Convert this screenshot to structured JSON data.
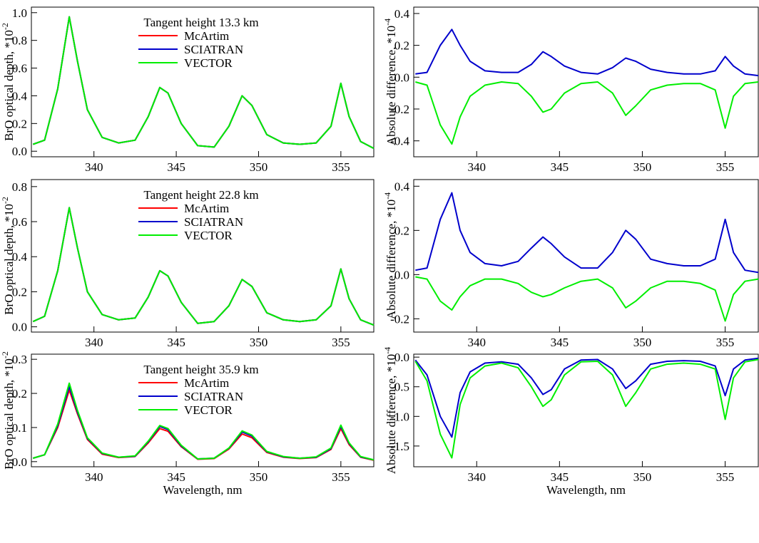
{
  "chart_data": [
    {
      "type": "line",
      "annotation": "Tangent height 13.3 km",
      "ylabel": "BrO optical depth, *10",
      "ylabel_sup": "-2",
      "x": [
        336.3,
        337,
        337.8,
        338.5,
        339,
        339.6,
        340.5,
        341.5,
        342.5,
        343.3,
        344,
        344.5,
        345.3,
        346.3,
        347.3,
        348.2,
        349,
        349.6,
        350.5,
        351.5,
        352.5,
        353.5,
        354.4,
        355,
        355.5,
        356.2,
        357
      ],
      "xlim": [
        336.2,
        357
      ],
      "xticks": [
        340,
        345,
        350,
        355
      ],
      "ylim": [
        -0.04,
        1.04
      ],
      "yticks": [
        {
          "value": 0,
          "label": "0.0"
        },
        0.2,
        0.4,
        0.6,
        0.8,
        {
          "value": 1,
          "label": "1.0"
        }
      ],
      "series": [
        {
          "name": "McArtim",
          "color": "#ff0000",
          "values": [
            0.05,
            0.08,
            0.45,
            0.97,
            0.65,
            0.3,
            0.1,
            0.06,
            0.08,
            0.25,
            0.46,
            0.42,
            0.2,
            0.04,
            0.03,
            0.18,
            0.4,
            0.33,
            0.12,
            0.06,
            0.05,
            0.06,
            0.18,
            0.49,
            0.25,
            0.07,
            0.02
          ]
        },
        {
          "name": "SCIATRAN",
          "color": "#0000cc",
          "values": [
            0.05,
            0.08,
            0.45,
            0.97,
            0.65,
            0.3,
            0.1,
            0.06,
            0.08,
            0.25,
            0.46,
            0.42,
            0.2,
            0.04,
            0.03,
            0.18,
            0.4,
            0.33,
            0.12,
            0.06,
            0.05,
            0.06,
            0.18,
            0.49,
            0.25,
            0.07,
            0.02
          ]
        },
        {
          "name": "VECTOR",
          "color": "#00ee00",
          "values": [
            0.05,
            0.08,
            0.45,
            0.97,
            0.65,
            0.3,
            0.1,
            0.06,
            0.08,
            0.25,
            0.46,
            0.42,
            0.2,
            0.04,
            0.03,
            0.18,
            0.4,
            0.33,
            0.12,
            0.06,
            0.05,
            0.06,
            0.18,
            0.49,
            0.25,
            0.07,
            0.02
          ]
        }
      ]
    },
    {
      "type": "line",
      "ylabel": "Absolute difference, *10",
      "ylabel_sup": "-4",
      "x": [
        336.3,
        337,
        337.8,
        338.5,
        339,
        339.6,
        340.5,
        341.5,
        342.5,
        343.3,
        344,
        344.5,
        345.3,
        346.3,
        347.3,
        348.2,
        349,
        349.6,
        350.5,
        351.5,
        352.5,
        353.5,
        354.4,
        355,
        355.5,
        356.2,
        357
      ],
      "xlim": [
        336.2,
        357
      ],
      "xticks": [
        340,
        345,
        350,
        355
      ],
      "ylim": [
        -0.5,
        0.44
      ],
      "yticks": [
        -0.4,
        -0.2,
        {
          "value": 0,
          "label": "0.0"
        },
        0.2,
        0.4
      ],
      "series": [
        {
          "color": "#0000cc",
          "values": [
            0.02,
            0.03,
            0.2,
            0.3,
            0.2,
            0.1,
            0.04,
            0.03,
            0.03,
            0.08,
            0.16,
            0.13,
            0.07,
            0.03,
            0.02,
            0.06,
            0.12,
            0.1,
            0.05,
            0.03,
            0.02,
            0.02,
            0.04,
            0.13,
            0.07,
            0.02,
            0.01
          ]
        },
        {
          "color": "#00ee00",
          "values": [
            -0.03,
            -0.05,
            -0.3,
            -0.42,
            -0.25,
            -0.12,
            -0.05,
            -0.03,
            -0.04,
            -0.12,
            -0.22,
            -0.2,
            -0.1,
            -0.04,
            -0.03,
            -0.1,
            -0.24,
            -0.18,
            -0.08,
            -0.05,
            -0.04,
            -0.04,
            -0.08,
            -0.32,
            -0.12,
            -0.04,
            -0.03
          ]
        }
      ]
    },
    {
      "type": "line",
      "annotation": "Tangent height 22.8 km",
      "ylabel": "BrO optical depth, *10",
      "ylabel_sup": "-2",
      "x": [
        336.3,
        337,
        337.8,
        338.5,
        339,
        339.6,
        340.5,
        341.5,
        342.5,
        343.3,
        344,
        344.5,
        345.3,
        346.3,
        347.3,
        348.2,
        349,
        349.6,
        350.5,
        351.5,
        352.5,
        353.5,
        354.4,
        355,
        355.5,
        356.2,
        357
      ],
      "xlim": [
        336.2,
        357
      ],
      "xticks": [
        340,
        345,
        350,
        355
      ],
      "ylim": [
        -0.03,
        0.84
      ],
      "yticks": [
        {
          "value": 0,
          "label": "0.0"
        },
        0.2,
        0.4,
        0.6,
        0.8
      ],
      "series": [
        {
          "name": "McArtim",
          "color": "#ff0000",
          "values": [
            0.03,
            0.06,
            0.32,
            0.68,
            0.45,
            0.2,
            0.07,
            0.04,
            0.05,
            0.17,
            0.32,
            0.29,
            0.14,
            0.02,
            0.03,
            0.12,
            0.27,
            0.23,
            0.08,
            0.04,
            0.03,
            0.04,
            0.12,
            0.33,
            0.16,
            0.04,
            0.01
          ]
        },
        {
          "name": "SCIATRAN",
          "color": "#0000cc",
          "values": [
            0.03,
            0.06,
            0.32,
            0.68,
            0.45,
            0.2,
            0.07,
            0.04,
            0.05,
            0.17,
            0.32,
            0.29,
            0.14,
            0.02,
            0.03,
            0.12,
            0.27,
            0.23,
            0.08,
            0.04,
            0.03,
            0.04,
            0.12,
            0.33,
            0.16,
            0.04,
            0.01
          ]
        },
        {
          "name": "VECTOR",
          "color": "#00ee00",
          "values": [
            0.03,
            0.06,
            0.32,
            0.68,
            0.45,
            0.2,
            0.07,
            0.04,
            0.05,
            0.17,
            0.32,
            0.29,
            0.14,
            0.02,
            0.03,
            0.12,
            0.27,
            0.23,
            0.08,
            0.04,
            0.03,
            0.04,
            0.12,
            0.33,
            0.16,
            0.04,
            0.01
          ]
        }
      ]
    },
    {
      "type": "line",
      "ylabel": "Absolute difference, *10",
      "ylabel_sup": "-4",
      "x": [
        336.3,
        337,
        337.8,
        338.5,
        339,
        339.6,
        340.5,
        341.5,
        342.5,
        343.3,
        344,
        344.5,
        345.3,
        346.3,
        347.3,
        348.2,
        349,
        349.6,
        350.5,
        351.5,
        352.5,
        353.5,
        354.4,
        355,
        355.5,
        356.2,
        357
      ],
      "xlim": [
        336.2,
        357
      ],
      "xticks": [
        340,
        345,
        350,
        355
      ],
      "ylim": [
        -0.26,
        0.43
      ],
      "yticks": [
        -0.2,
        {
          "value": 0,
          "label": "0.0"
        },
        0.2,
        0.4
      ],
      "series": [
        {
          "color": "#0000cc",
          "values": [
            0.02,
            0.03,
            0.25,
            0.37,
            0.2,
            0.1,
            0.05,
            0.04,
            0.06,
            0.12,
            0.17,
            0.14,
            0.08,
            0.03,
            0.03,
            0.1,
            0.2,
            0.16,
            0.07,
            0.05,
            0.04,
            0.04,
            0.07,
            0.25,
            0.1,
            0.02,
            0.01
          ]
        },
        {
          "color": "#00ee00",
          "values": [
            -0.01,
            -0.02,
            -0.12,
            -0.16,
            -0.1,
            -0.05,
            -0.02,
            -0.02,
            -0.04,
            -0.08,
            -0.1,
            -0.09,
            -0.06,
            -0.03,
            -0.02,
            -0.06,
            -0.15,
            -0.12,
            -0.06,
            -0.03,
            -0.03,
            -0.04,
            -0.07,
            -0.21,
            -0.09,
            -0.03,
            -0.02
          ]
        }
      ]
    },
    {
      "type": "line",
      "annotation": "Tangent height 35.9 km",
      "ylabel": "BrO optical depth, *10",
      "ylabel_sup": "-2",
      "xlabel": "Wavelength, nm",
      "x": [
        336.3,
        337,
        337.8,
        338.5,
        339,
        339.6,
        340.5,
        341.5,
        342.5,
        343.3,
        344,
        344.5,
        345.3,
        346.3,
        347.3,
        348.2,
        349,
        349.6,
        350.5,
        351.5,
        352.5,
        353.5,
        354.4,
        355,
        355.5,
        356.2,
        357
      ],
      "xlim": [
        336.2,
        357
      ],
      "xticks": [
        340,
        345,
        350,
        355
      ],
      "ylim": [
        -0.015,
        0.315
      ],
      "yticks": [
        {
          "value": 0,
          "label": "0.0"
        },
        0.1,
        0.2,
        0.3
      ],
      "series": [
        {
          "name": "McArtim",
          "color": "#ff0000",
          "values": [
            0.01,
            0.02,
            0.1,
            0.21,
            0.14,
            0.065,
            0.022,
            0.012,
            0.015,
            0.055,
            0.097,
            0.089,
            0.044,
            0.007,
            0.009,
            0.037,
            0.081,
            0.07,
            0.027,
            0.013,
            0.009,
            0.012,
            0.036,
            0.097,
            0.05,
            0.013,
            0.004
          ]
        },
        {
          "name": "SCIATRAN",
          "color": "#0000cc",
          "values": [
            0.01,
            0.02,
            0.105,
            0.22,
            0.145,
            0.068,
            0.024,
            0.013,
            0.016,
            0.058,
            0.103,
            0.094,
            0.046,
            0.008,
            0.01,
            0.039,
            0.087,
            0.075,
            0.029,
            0.014,
            0.01,
            0.013,
            0.038,
            0.103,
            0.053,
            0.014,
            0.005
          ]
        },
        {
          "name": "VECTOR",
          "color": "#00ee00",
          "values": [
            0.01,
            0.02,
            0.11,
            0.23,
            0.15,
            0.07,
            0.025,
            0.013,
            0.017,
            0.06,
            0.106,
            0.097,
            0.048,
            0.008,
            0.01,
            0.04,
            0.09,
            0.078,
            0.03,
            0.015,
            0.01,
            0.014,
            0.04,
            0.107,
            0.055,
            0.015,
            0.005
          ]
        }
      ]
    },
    {
      "type": "line",
      "ylabel": "Absolute difference, *10",
      "ylabel_sup": "-4",
      "xlabel": "Wavelength, nm",
      "x": [
        336.3,
        337,
        337.8,
        338.5,
        339,
        339.6,
        340.5,
        341.5,
        342.5,
        343.3,
        344,
        344.5,
        345.3,
        346.3,
        347.3,
        348.2,
        349,
        349.6,
        350.5,
        351.5,
        352.5,
        353.5,
        354.4,
        355,
        355.5,
        356.2,
        357
      ],
      "xlim": [
        336.2,
        357
      ],
      "xticks": [
        340,
        345,
        350,
        355
      ],
      "ylim": [
        -1.85,
        0.05
      ],
      "yticks": [
        -1.5,
        {
          "value": -1,
          "label": "-1.0"
        },
        -0.5,
        {
          "value": 0,
          "label": "0.0"
        }
      ],
      "series": [
        {
          "color": "#0000cc",
          "values": [
            -0.05,
            -0.3,
            -1,
            -1.35,
            -0.6,
            -0.25,
            -0.1,
            -0.08,
            -0.12,
            -0.35,
            -0.63,
            -0.55,
            -0.2,
            -0.05,
            -0.04,
            -0.2,
            -0.53,
            -0.4,
            -0.12,
            -0.07,
            -0.06,
            -0.07,
            -0.15,
            -0.65,
            -0.2,
            -0.05,
            -0.02
          ]
        },
        {
          "color": "#00ee00",
          "values": [
            -0.07,
            -0.4,
            -1.3,
            -1.7,
            -0.8,
            -0.35,
            -0.15,
            -0.1,
            -0.18,
            -0.5,
            -0.83,
            -0.72,
            -0.3,
            -0.08,
            -0.07,
            -0.3,
            -0.83,
            -0.6,
            -0.2,
            -0.12,
            -0.1,
            -0.12,
            -0.2,
            -1.05,
            -0.35,
            -0.08,
            -0.04
          ]
        }
      ]
    }
  ]
}
